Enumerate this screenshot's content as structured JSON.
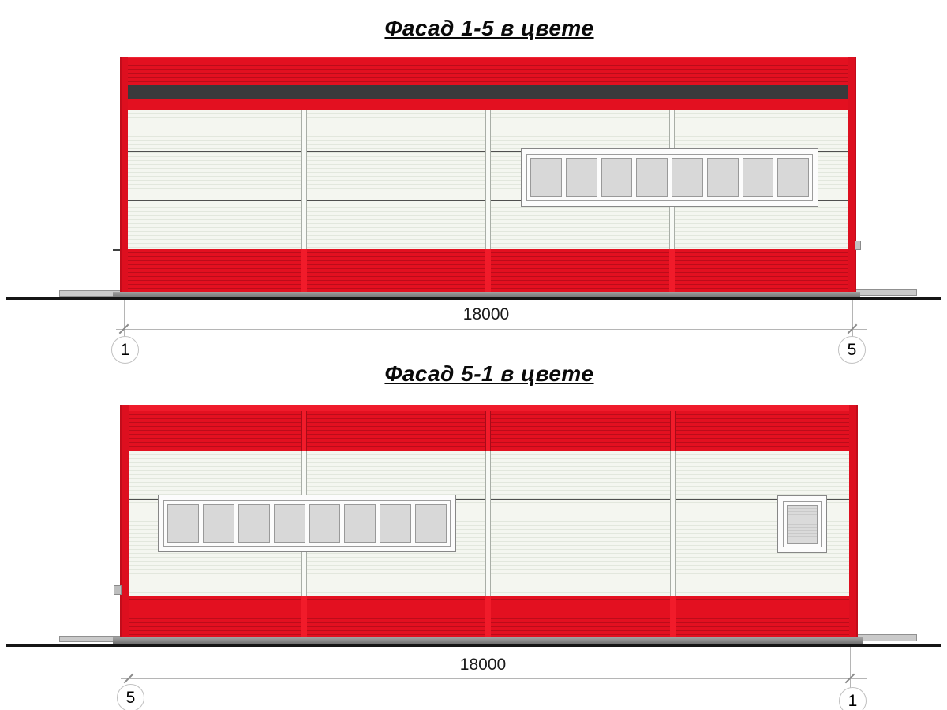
{
  "drawing": {
    "facades": [
      {
        "title": "Фасад 1-5 в цвете",
        "dimension": "18000",
        "axis_left": "1",
        "axis_right": "5",
        "ribbon_window_panes": 8
      },
      {
        "title": "Фасад 5-1 в цвете",
        "dimension": "18000",
        "axis_left": "5",
        "axis_right": "1",
        "ribbon_window_panes": 8,
        "small_window_panes": 1
      }
    ],
    "colors": {
      "facade_red": "#e31020",
      "red_seam": "#bb0c1a",
      "accent_stripe_dark": "#3a3a3c",
      "panel_white": "#f4f6f0",
      "panel_seam": "#e2e7dd",
      "window_pane": "#d8d8d8",
      "window_frame": "#fcfcfc",
      "plinth_gray": "#8e8e8e",
      "ground_line": "#151515",
      "dimension_gray": "#b5b5b5"
    }
  }
}
